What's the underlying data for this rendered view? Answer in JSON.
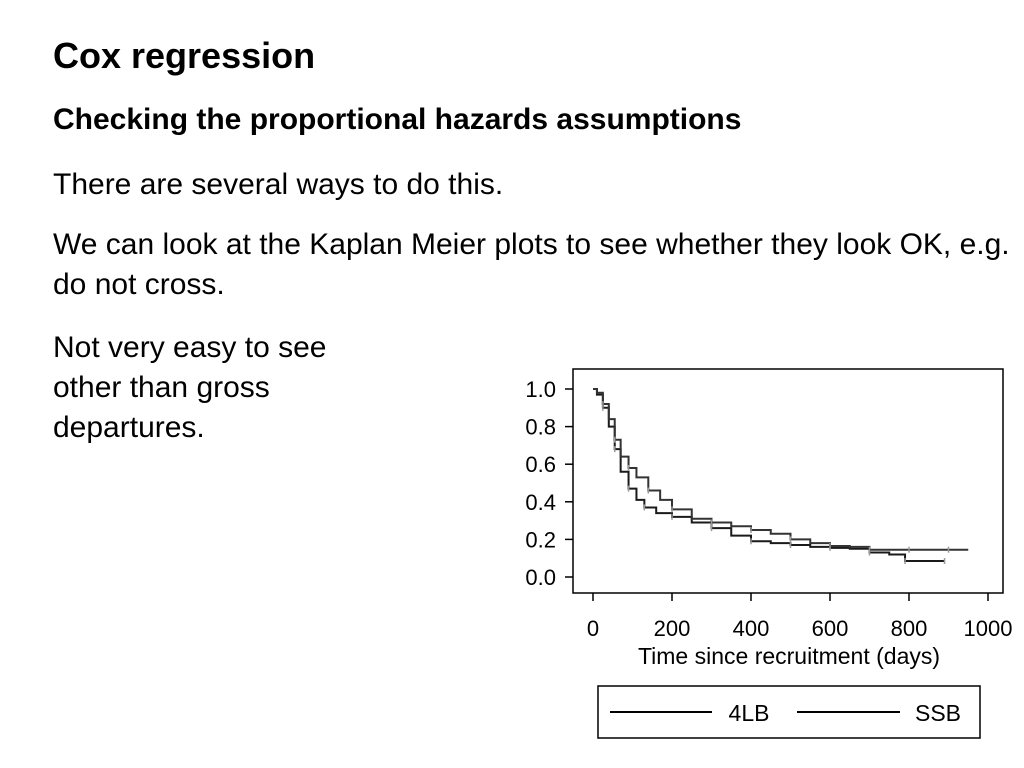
{
  "slide": {
    "title": "Cox regression",
    "subtitle": "Checking the proportional hazards assumptions",
    "paragraphs": [
      "There are several ways to do this.",
      "We can look at the Kaplan Meier plots to see whether they look OK, e.g. do not cross.",
      "Not very easy to see other than gross departures."
    ]
  },
  "chart_data": {
    "type": "line",
    "title": "",
    "xlabel": "Time since recruitment (days)",
    "ylabel": "",
    "xlim": [
      0,
      1000
    ],
    "ylim": [
      0,
      1
    ],
    "xticks": [
      "0",
      "200",
      "400",
      "600",
      "800",
      "1000"
    ],
    "yticks": [
      "0.0",
      "0.2",
      "0.4",
      "0.6",
      "0.8",
      "1.0"
    ],
    "grid": false,
    "legend_placement": "bottom",
    "series": [
      {
        "name": "4LB",
        "color": "#1a1a1a",
        "x": [
          0,
          10,
          25,
          40,
          55,
          70,
          90,
          110,
          130,
          160,
          200,
          250,
          300,
          350,
          400,
          450,
          500,
          550,
          600,
          650,
          700,
          750,
          790,
          850,
          890
        ],
        "y": [
          1.0,
          0.97,
          0.9,
          0.8,
          0.68,
          0.56,
          0.47,
          0.41,
          0.37,
          0.34,
          0.32,
          0.29,
          0.26,
          0.22,
          0.19,
          0.18,
          0.17,
          0.16,
          0.155,
          0.15,
          0.13,
          0.12,
          0.085,
          0.085,
          0.085
        ]
      },
      {
        "name": "SSB",
        "color": "#333333",
        "x": [
          0,
          10,
          25,
          40,
          55,
          70,
          90,
          110,
          140,
          170,
          200,
          250,
          300,
          350,
          400,
          450,
          500,
          550,
          600,
          650,
          700,
          750,
          800,
          850,
          900,
          950
        ],
        "y": [
          1.0,
          0.98,
          0.92,
          0.84,
          0.73,
          0.64,
          0.58,
          0.53,
          0.46,
          0.41,
          0.36,
          0.31,
          0.29,
          0.27,
          0.25,
          0.23,
          0.2,
          0.18,
          0.165,
          0.16,
          0.145,
          0.145,
          0.145,
          0.145,
          0.145,
          0.145
        ]
      }
    ]
  }
}
